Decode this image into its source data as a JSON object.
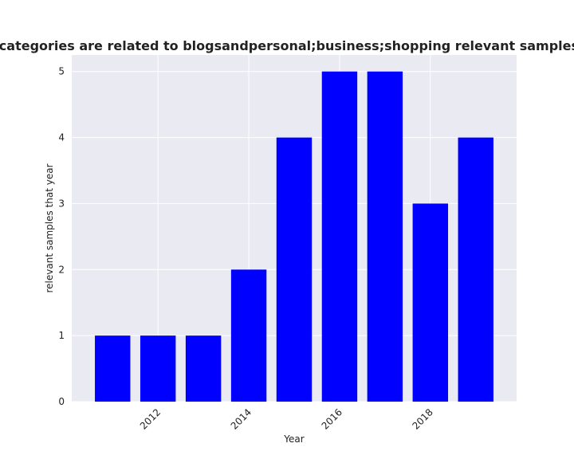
{
  "chart_data": {
    "type": "bar",
    "title": "Number of samples whose categories are related to blogsandpersonal;business;shopping relevant samples that year in privacy policies",
    "xlabel": "Year",
    "ylabel": "relevant samples that year",
    "x": [
      2011,
      2012,
      2013,
      2014,
      2015,
      2016,
      2017,
      2018,
      2019
    ],
    "values": [
      1,
      1,
      1,
      2,
      4,
      5,
      5,
      3,
      4
    ],
    "xticks": [
      2012,
      2014,
      2016,
      2018
    ],
    "xtick_labels": [
      "2012",
      "2014",
      "2016",
      "2018"
    ],
    "yticks": [
      0,
      1,
      2,
      3,
      4,
      5
    ],
    "ytick_labels": [
      "0",
      "1",
      "2",
      "3",
      "4",
      "5"
    ],
    "xlim": [
      2010.1,
      2019.9
    ],
    "ylim": [
      0,
      5.25
    ],
    "grid": true,
    "bar_color": "#0000ff",
    "plot_background": "#eaeaf2",
    "grid_color": "#ffffff"
  }
}
